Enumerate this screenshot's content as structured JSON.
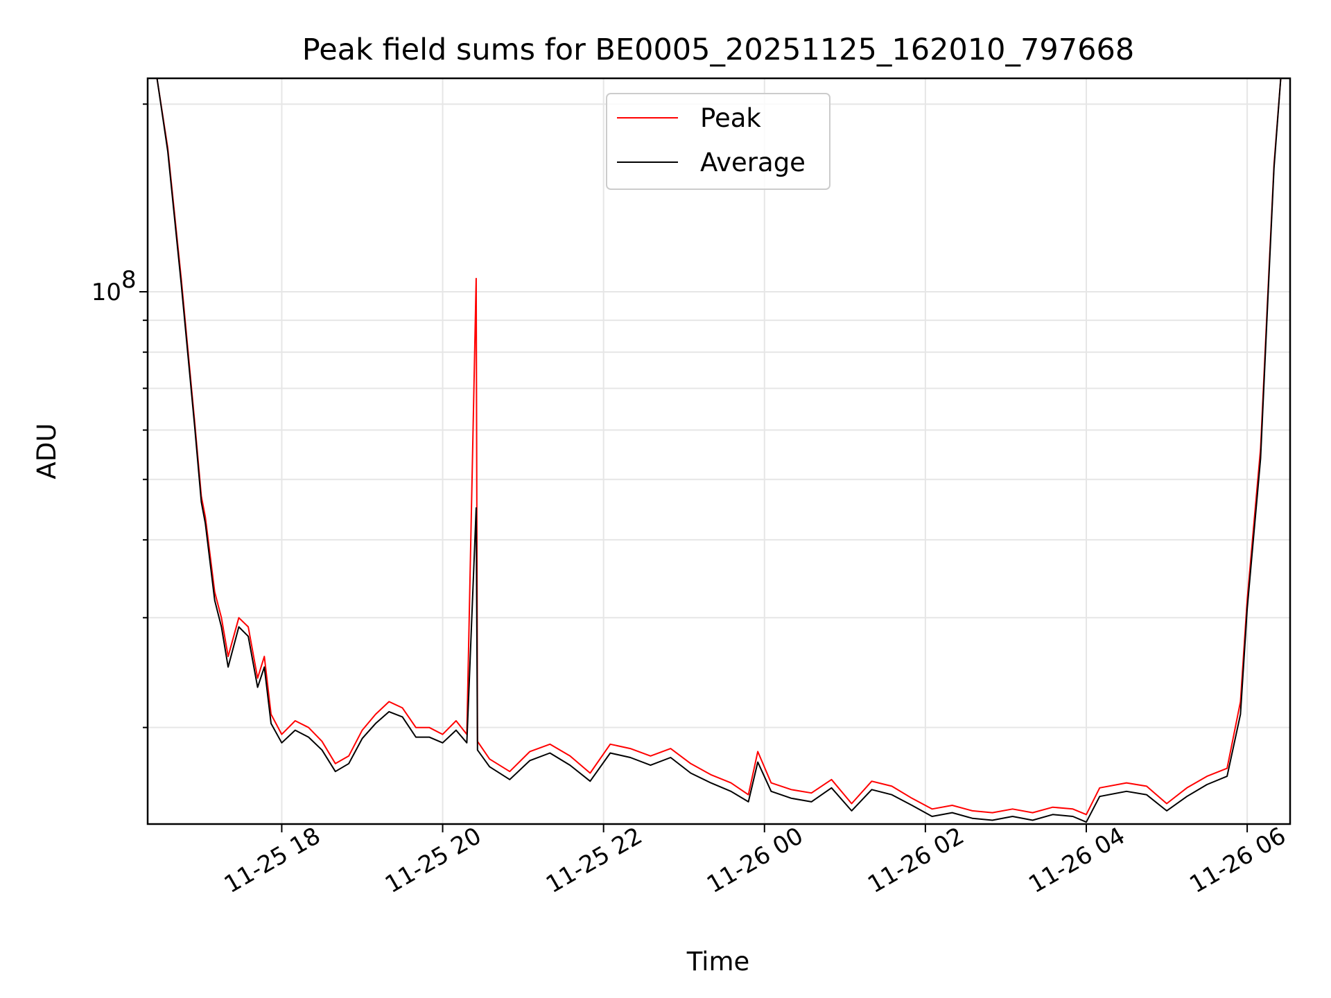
{
  "chart_data": {
    "type": "line",
    "title": "Peak field sums for BE0005_20251125_162010_797668",
    "xlabel": "Time",
    "ylabel": "ADU",
    "yscale": "log",
    "xlim": [
      "2025-11-25 16:20",
      "2025-11-26 06:32"
    ],
    "ylim": [
      14000000,
      220000000
    ],
    "grid": true,
    "legend_position": "top-center",
    "x_ticks": [
      {
        "value": "2025-11-25 18:00",
        "label": "11-25 18"
      },
      {
        "value": "2025-11-25 20:00",
        "label": "11-25 20"
      },
      {
        "value": "2025-11-25 22:00",
        "label": "11-25 22"
      },
      {
        "value": "2025-11-26 00:00",
        "label": "11-26 00"
      },
      {
        "value": "2025-11-26 02:00",
        "label": "11-26 02"
      },
      {
        "value": "2025-11-26 04:00",
        "label": "11-26 04"
      },
      {
        "value": "2025-11-26 06:00",
        "label": "11-26 06"
      }
    ],
    "y_ticks": [
      {
        "value": 100000000,
        "label": "10",
        "exponent": "8"
      }
    ],
    "y_minor_ticks": [
      20000000,
      30000000,
      40000000,
      50000000,
      60000000,
      70000000,
      80000000,
      90000000,
      200000000
    ],
    "series": [
      {
        "name": "Peak",
        "color": "#ff0000",
        "points": [
          [
            "2025-11-25 16:27",
            220000000
          ],
          [
            "2025-11-25 16:35",
            170000000
          ],
          [
            "2025-11-25 16:45",
            105000000
          ],
          [
            "2025-11-25 16:55",
            62000000
          ],
          [
            "2025-11-25 17:00",
            47000000
          ],
          [
            "2025-11-25 17:03",
            43500000
          ],
          [
            "2025-11-25 17:10",
            33000000
          ],
          [
            "2025-11-25 17:15",
            30000000
          ],
          [
            "2025-11-25 17:20",
            26000000
          ],
          [
            "2025-11-25 17:28",
            30000000
          ],
          [
            "2025-11-25 17:35",
            29000000
          ],
          [
            "2025-11-25 17:42",
            24000000
          ],
          [
            "2025-11-25 17:47",
            26000000
          ],
          [
            "2025-11-25 17:52",
            21000000
          ],
          [
            "2025-11-25 18:00",
            19500000
          ],
          [
            "2025-11-25 18:10",
            20500000
          ],
          [
            "2025-11-25 18:20",
            20000000
          ],
          [
            "2025-11-25 18:30",
            19000000
          ],
          [
            "2025-11-25 18:40",
            17500000
          ],
          [
            "2025-11-25 18:50",
            18000000
          ],
          [
            "2025-11-25 19:00",
            19800000
          ],
          [
            "2025-11-25 19:10",
            21000000
          ],
          [
            "2025-11-25 19:20",
            22000000
          ],
          [
            "2025-11-25 19:30",
            21500000
          ],
          [
            "2025-11-25 19:40",
            20000000
          ],
          [
            "2025-11-25 19:50",
            20000000
          ],
          [
            "2025-11-25 20:00",
            19500000
          ],
          [
            "2025-11-25 20:10",
            20500000
          ],
          [
            "2025-11-25 20:18",
            19500000
          ],
          [
            "2025-11-25 20:25",
            105000000
          ],
          [
            "2025-11-25 20:26",
            19000000
          ],
          [
            "2025-11-25 20:35",
            17800000
          ],
          [
            "2025-11-25 20:50",
            17000000
          ],
          [
            "2025-11-25 21:05",
            18300000
          ],
          [
            "2025-11-25 21:20",
            18800000
          ],
          [
            "2025-11-25 21:35",
            18000000
          ],
          [
            "2025-11-25 21:50",
            16900000
          ],
          [
            "2025-11-25 22:05",
            18800000
          ],
          [
            "2025-11-25 22:20",
            18500000
          ],
          [
            "2025-11-25 22:35",
            18000000
          ],
          [
            "2025-11-25 22:50",
            18500000
          ],
          [
            "2025-11-25 23:05",
            17500000
          ],
          [
            "2025-11-25 23:20",
            16800000
          ],
          [
            "2025-11-25 23:35",
            16300000
          ],
          [
            "2025-11-25 23:48",
            15600000
          ],
          [
            "2025-11-25 23:55",
            18300000
          ],
          [
            "2025-11-26 00:05",
            16300000
          ],
          [
            "2025-11-26 00:20",
            15900000
          ],
          [
            "2025-11-26 00:35",
            15700000
          ],
          [
            "2025-11-26 00:50",
            16500000
          ],
          [
            "2025-11-26 01:05",
            15100000
          ],
          [
            "2025-11-26 01:20",
            16400000
          ],
          [
            "2025-11-26 01:35",
            16100000
          ],
          [
            "2025-11-26 01:50",
            15400000
          ],
          [
            "2025-11-26 02:05",
            14800000
          ],
          [
            "2025-11-26 02:20",
            15000000
          ],
          [
            "2025-11-26 02:35",
            14700000
          ],
          [
            "2025-11-26 02:50",
            14600000
          ],
          [
            "2025-11-26 03:05",
            14800000
          ],
          [
            "2025-11-26 03:20",
            14600000
          ],
          [
            "2025-11-26 03:35",
            14900000
          ],
          [
            "2025-11-26 03:50",
            14800000
          ],
          [
            "2025-11-26 04:00",
            14500000
          ],
          [
            "2025-11-26 04:10",
            16000000
          ],
          [
            "2025-11-26 04:30",
            16300000
          ],
          [
            "2025-11-26 04:45",
            16100000
          ],
          [
            "2025-11-26 05:00",
            15100000
          ],
          [
            "2025-11-26 05:15",
            16000000
          ],
          [
            "2025-11-26 05:30",
            16700000
          ],
          [
            "2025-11-26 05:45",
            17200000
          ],
          [
            "2025-11-26 05:55",
            22000000
          ],
          [
            "2025-11-26 06:00",
            32000000
          ],
          [
            "2025-11-26 06:05",
            42500000
          ],
          [
            "2025-11-26 06:10",
            56000000
          ],
          [
            "2025-11-26 06:15",
            95000000
          ],
          [
            "2025-11-26 06:20",
            160000000
          ],
          [
            "2025-11-26 06:25",
            220000000
          ]
        ]
      },
      {
        "name": "Average",
        "color": "#000000",
        "points": [
          [
            "2025-11-25 16:27",
            220000000
          ],
          [
            "2025-11-25 16:35",
            168000000
          ],
          [
            "2025-11-25 16:45",
            103000000
          ],
          [
            "2025-11-25 16:55",
            61000000
          ],
          [
            "2025-11-25 17:00",
            46000000
          ],
          [
            "2025-11-25 17:03",
            42500000
          ],
          [
            "2025-11-25 17:10",
            32000000
          ],
          [
            "2025-11-25 17:15",
            29000000
          ],
          [
            "2025-11-25 17:20",
            25000000
          ],
          [
            "2025-11-25 17:28",
            29000000
          ],
          [
            "2025-11-25 17:35",
            28000000
          ],
          [
            "2025-11-25 17:42",
            23200000
          ],
          [
            "2025-11-25 17:47",
            25000000
          ],
          [
            "2025-11-25 17:52",
            20300000
          ],
          [
            "2025-11-25 18:00",
            18900000
          ],
          [
            "2025-11-25 18:10",
            19800000
          ],
          [
            "2025-11-25 18:20",
            19300000
          ],
          [
            "2025-11-25 18:30",
            18400000
          ],
          [
            "2025-11-25 18:40",
            17000000
          ],
          [
            "2025-11-25 18:50",
            17500000
          ],
          [
            "2025-11-25 19:00",
            19200000
          ],
          [
            "2025-11-25 19:10",
            20300000
          ],
          [
            "2025-11-25 19:20",
            21200000
          ],
          [
            "2025-11-25 19:30",
            20800000
          ],
          [
            "2025-11-25 19:40",
            19300000
          ],
          [
            "2025-11-25 19:50",
            19300000
          ],
          [
            "2025-11-25 20:00",
            18900000
          ],
          [
            "2025-11-25 20:10",
            19800000
          ],
          [
            "2025-11-25 20:18",
            18900000
          ],
          [
            "2025-11-25 20:25",
            45000000
          ],
          [
            "2025-11-25 20:26",
            18400000
          ],
          [
            "2025-11-25 20:35",
            17300000
          ],
          [
            "2025-11-25 20:50",
            16500000
          ],
          [
            "2025-11-25 21:05",
            17700000
          ],
          [
            "2025-11-25 21:20",
            18200000
          ],
          [
            "2025-11-25 21:35",
            17400000
          ],
          [
            "2025-11-25 21:50",
            16400000
          ],
          [
            "2025-11-25 22:05",
            18200000
          ],
          [
            "2025-11-25 22:20",
            17900000
          ],
          [
            "2025-11-25 22:35",
            17400000
          ],
          [
            "2025-11-25 22:50",
            17900000
          ],
          [
            "2025-11-25 23:05",
            16900000
          ],
          [
            "2025-11-25 23:20",
            16300000
          ],
          [
            "2025-11-25 23:35",
            15800000
          ],
          [
            "2025-11-25 23:48",
            15200000
          ],
          [
            "2025-11-25 23:55",
            17600000
          ],
          [
            "2025-11-26 00:05",
            15800000
          ],
          [
            "2025-11-26 00:20",
            15400000
          ],
          [
            "2025-11-26 00:35",
            15200000
          ],
          [
            "2025-11-26 00:50",
            16000000
          ],
          [
            "2025-11-26 01:05",
            14700000
          ],
          [
            "2025-11-26 01:20",
            15900000
          ],
          [
            "2025-11-26 01:35",
            15600000
          ],
          [
            "2025-11-26 01:50",
            15000000
          ],
          [
            "2025-11-26 02:05",
            14400000
          ],
          [
            "2025-11-26 02:20",
            14600000
          ],
          [
            "2025-11-26 02:35",
            14300000
          ],
          [
            "2025-11-26 02:50",
            14200000
          ],
          [
            "2025-11-26 03:05",
            14400000
          ],
          [
            "2025-11-26 03:20",
            14200000
          ],
          [
            "2025-11-26 03:35",
            14500000
          ],
          [
            "2025-11-26 03:50",
            14400000
          ],
          [
            "2025-11-26 04:00",
            14100000
          ],
          [
            "2025-11-26 04:10",
            15500000
          ],
          [
            "2025-11-26 04:30",
            15800000
          ],
          [
            "2025-11-26 04:45",
            15600000
          ],
          [
            "2025-11-26 05:00",
            14700000
          ],
          [
            "2025-11-26 05:15",
            15500000
          ],
          [
            "2025-11-26 05:30",
            16200000
          ],
          [
            "2025-11-26 05:45",
            16700000
          ],
          [
            "2025-11-26 05:55",
            21000000
          ],
          [
            "2025-11-26 06:00",
            31000000
          ],
          [
            "2025-11-26 06:05",
            41000000
          ],
          [
            "2025-11-26 06:10",
            54000000
          ],
          [
            "2025-11-26 06:15",
            93000000
          ],
          [
            "2025-11-26 06:20",
            158000000
          ],
          [
            "2025-11-26 06:25",
            220000000
          ]
        ]
      }
    ]
  }
}
